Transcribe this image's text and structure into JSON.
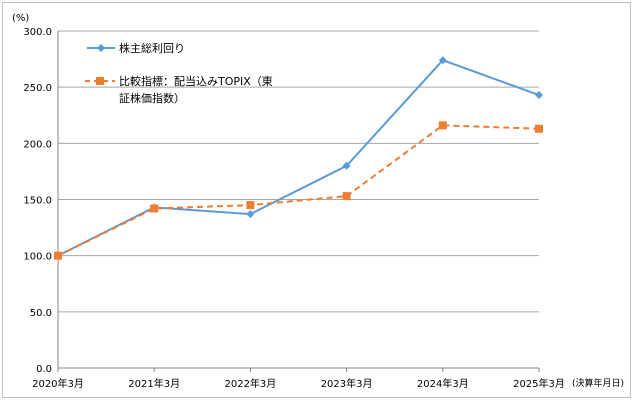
{
  "chart_data": {
    "type": "line",
    "y_unit": "(%)",
    "x_note": "(決算年月日)",
    "categories": [
      "2020年3月",
      "2021年3月",
      "2022年3月",
      "2023年3月",
      "2024年3月",
      "2025年3月"
    ],
    "ylim": [
      0,
      300
    ],
    "yticks": [
      "0.0",
      "50.0",
      "100.0",
      "150.0",
      "200.0",
      "250.0",
      "300.0"
    ],
    "grid": true,
    "legend_position": "top-left",
    "series": [
      {
        "name": "株主総利回り",
        "values": [
          100,
          143,
          137,
          180,
          274,
          243
        ],
        "color": "#5b9bd5",
        "marker": "diamond",
        "line_style": "solid"
      },
      {
        "name_lines": [
          "比較指標：配当込みTOPIX（東",
          "証株価指数）"
        ],
        "values": [
          100,
          142,
          145,
          153,
          216,
          213
        ],
        "color": "#ed7d31",
        "marker": "square",
        "line_style": "dashed"
      }
    ]
  }
}
